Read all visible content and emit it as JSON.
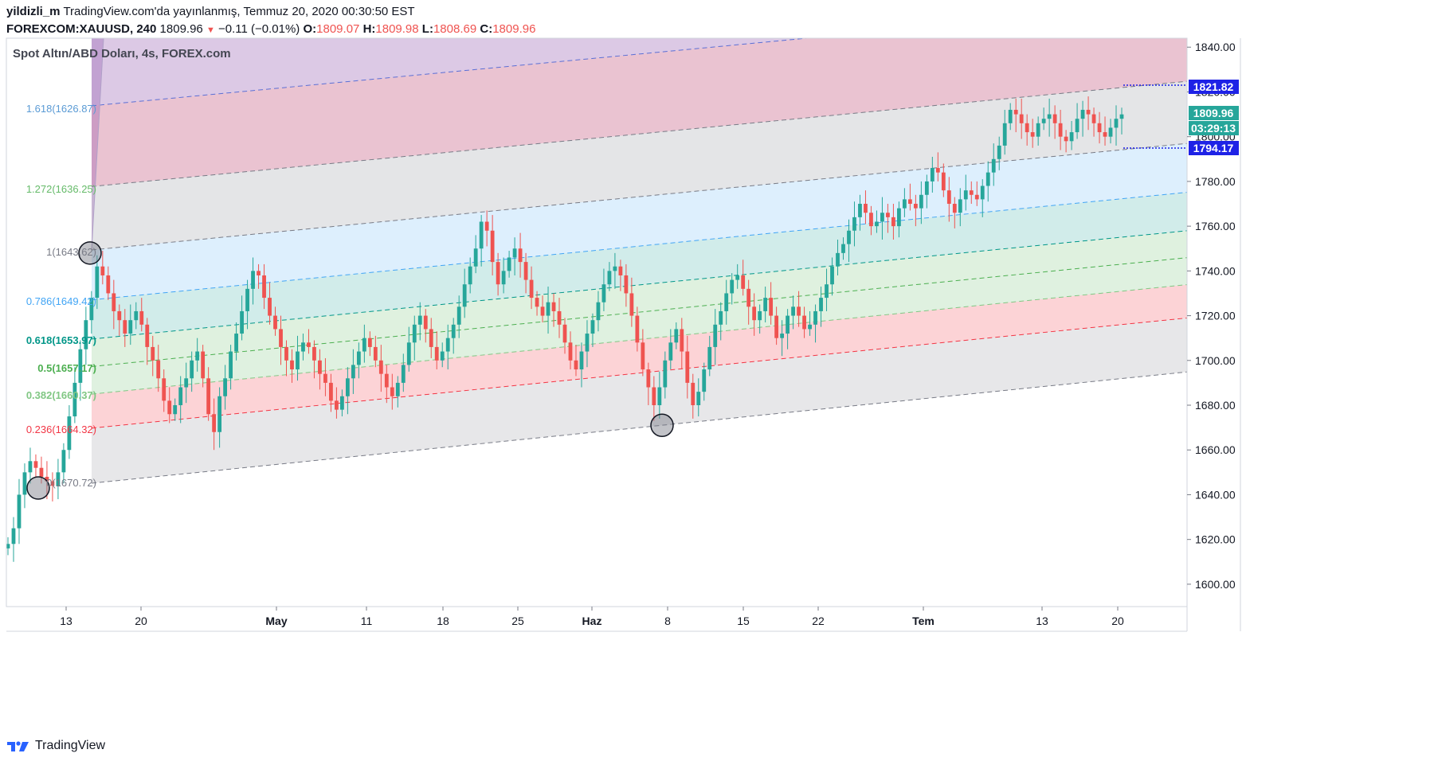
{
  "header": {
    "user": "yildizli_m",
    "published": "TradingView.com'da yayınlanmış, Temmuz 20, 2020 00:30:50 EST",
    "symbol": "FOREXCOM:XAUUSD, 240",
    "last": "1809.96",
    "change": "−0.11 (−0.01%)",
    "o_label": "O:",
    "o_value": "1809.07",
    "h_label": "H:",
    "h_value": "1809.98",
    "l_label": "L:",
    "l_value": "1808.69",
    "c_label": "C:",
    "c_value": "1809.96"
  },
  "footer": {
    "brand": "TradingView"
  },
  "colors": {
    "up": "#26a69a",
    "down": "#ef5350",
    "accent_blue": "#1e22e6",
    "teal_badge": "#26a69a"
  },
  "chart_data": {
    "type": "candlestick",
    "title": "Spot Altın/ABD Doları, 4s, FOREX.com",
    "ylim": [
      1590,
      1844
    ],
    "yticks": [
      1600,
      1620,
      1640,
      1660,
      1680,
      1700,
      1720,
      1740,
      1760,
      1780,
      1800,
      1820,
      1840
    ],
    "xticks": [
      {
        "label": "13",
        "bold": false
      },
      {
        "label": "20",
        "bold": false
      },
      {
        "label": "May",
        "bold": true
      },
      {
        "label": "11",
        "bold": false
      },
      {
        "label": "18",
        "bold": false
      },
      {
        "label": "25",
        "bold": false
      },
      {
        "label": "Haz",
        "bold": true
      },
      {
        "label": "8",
        "bold": false
      },
      {
        "label": "15",
        "bold": false
      },
      {
        "label": "22",
        "bold": false
      },
      {
        "label": "Tem",
        "bold": true
      },
      {
        "label": "13",
        "bold": false
      },
      {
        "label": "20",
        "bold": false
      }
    ],
    "fib_levels": [
      {
        "ratio": "1.618",
        "label": "1.618(1626.87)",
        "color": "#5b9bd5"
      },
      {
        "ratio": "1.272",
        "label": "1.272(1636.25)",
        "color": "#66bb6a"
      },
      {
        "ratio": "1",
        "label": "1(1643.62)",
        "color": "#787b86"
      },
      {
        "ratio": "0.786",
        "label": "0.786(1649.42)",
        "color": "#42a5f5"
      },
      {
        "ratio": "0.618",
        "label": "0.618(1653.97)",
        "color": "#009688"
      },
      {
        "ratio": "0.5",
        "label": "0.5(1657.17)",
        "color": "#4caf50"
      },
      {
        "ratio": "0.382",
        "label": "0.382(1660.37)",
        "color": "#81c784"
      },
      {
        "ratio": "0.236",
        "label": "0.236(1664.32)",
        "color": "#f23645"
      },
      {
        "ratio": "0",
        "label": "0(1670.72)",
        "color": "#787b86"
      }
    ],
    "anchor_points": [
      {
        "date": "Apr 10",
        "price": 1643
      },
      {
        "date": "Apr 14",
        "price": 1748
      },
      {
        "date": "Jun 5",
        "price": 1671
      }
    ],
    "price_badges": [
      {
        "value": "1821.82",
        "kind": "line",
        "color": "#1e22e6"
      },
      {
        "value": "1809.96",
        "kind": "last",
        "color": "#26a69a"
      },
      {
        "value": "03:29:13",
        "kind": "countdown",
        "color": "#26a69a"
      },
      {
        "value": "1794.17",
        "kind": "line",
        "color": "#1e22e6"
      }
    ],
    "last_price": 1809.96,
    "close_series": [
      1618,
      1625,
      1640,
      1650,
      1655,
      1652,
      1648,
      1646,
      1644,
      1650,
      1660,
      1675,
      1690,
      1705,
      1718,
      1728,
      1742,
      1738,
      1730,
      1722,
      1718,
      1712,
      1718,
      1722,
      1716,
      1706,
      1700,
      1692,
      1682,
      1676,
      1680,
      1688,
      1692,
      1700,
      1704,
      1692,
      1676,
      1668,
      1684,
      1692,
      1704,
      1712,
      1722,
      1732,
      1740,
      1738,
      1728,
      1720,
      1714,
      1706,
      1700,
      1696,
      1704,
      1708,
      1706,
      1700,
      1694,
      1690,
      1682,
      1678,
      1684,
      1692,
      1698,
      1704,
      1710,
      1706,
      1700,
      1694,
      1688,
      1684,
      1690,
      1698,
      1708,
      1716,
      1720,
      1714,
      1706,
      1700,
      1704,
      1710,
      1716,
      1724,
      1734,
      1742,
      1750,
      1762,
      1758,
      1744,
      1734,
      1740,
      1746,
      1750,
      1744,
      1736,
      1728,
      1724,
      1720,
      1726,
      1722,
      1716,
      1708,
      1700,
      1696,
      1704,
      1712,
      1718,
      1726,
      1734,
      1740,
      1742,
      1738,
      1730,
      1720,
      1708,
      1696,
      1688,
      1680,
      1688,
      1700,
      1708,
      1714,
      1704,
      1690,
      1680,
      1686,
      1696,
      1706,
      1716,
      1722,
      1730,
      1736,
      1738,
      1732,
      1724,
      1718,
      1722,
      1728,
      1720,
      1710,
      1712,
      1720,
      1724,
      1720,
      1714,
      1716,
      1722,
      1728,
      1734,
      1742,
      1748,
      1752,
      1758,
      1764,
      1770,
      1766,
      1760,
      1762,
      1766,
      1764,
      1760,
      1768,
      1772,
      1770,
      1768,
      1774,
      1780,
      1786,
      1784,
      1776,
      1770,
      1766,
      1772,
      1776,
      1774,
      1772,
      1778,
      1784,
      1790,
      1796,
      1806,
      1812,
      1810,
      1806,
      1802,
      1800,
      1806,
      1808,
      1810,
      1806,
      1800,
      1798,
      1802,
      1808,
      1812,
      1810,
      1806,
      1802,
      1800,
      1804,
      1808,
      1809.96
    ]
  }
}
